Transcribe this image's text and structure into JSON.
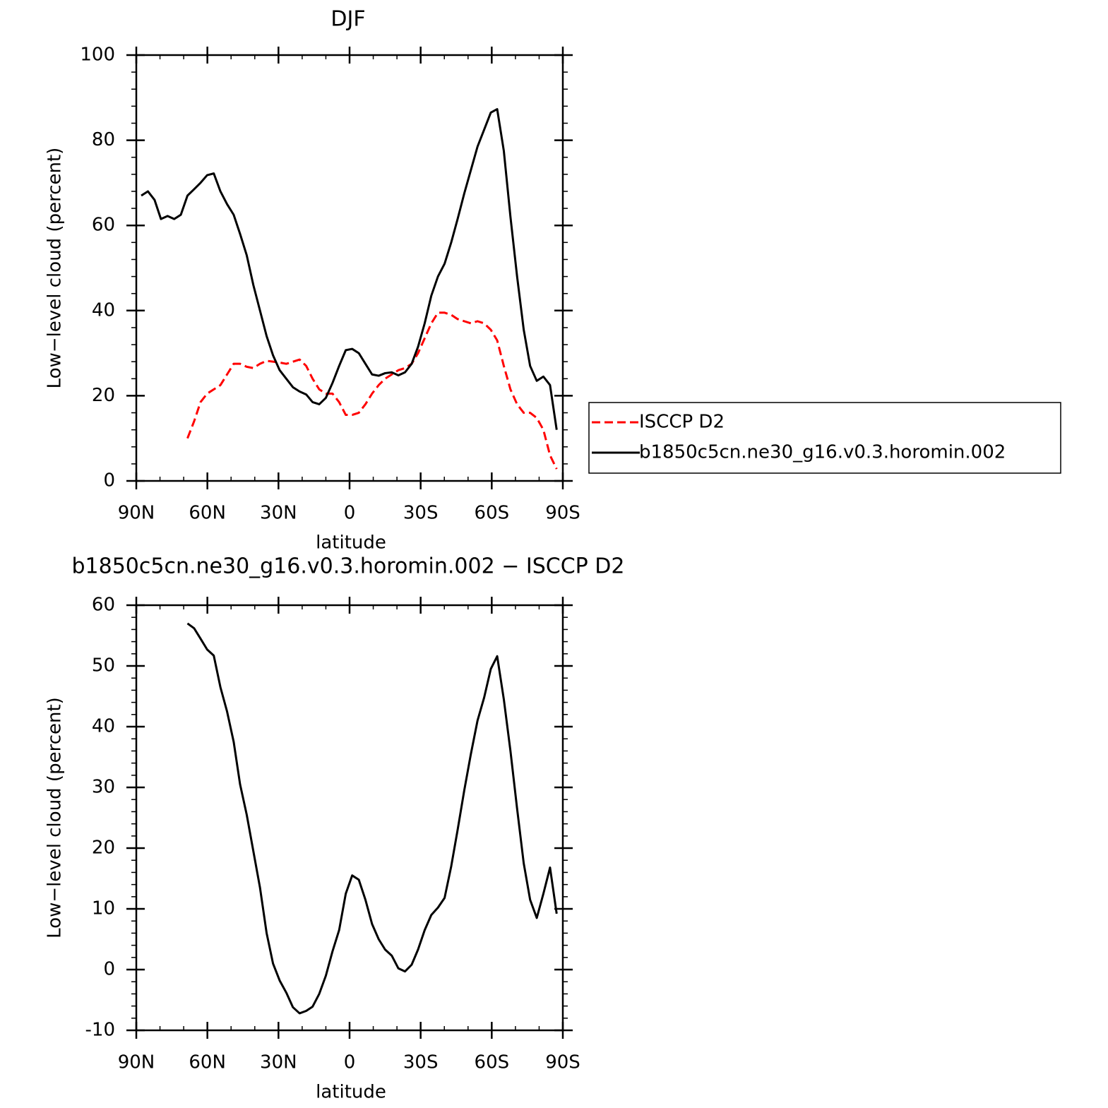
{
  "chart_data": [
    {
      "type": "line",
      "title": "DJF",
      "x_label": "latitude",
      "y_label": "Low−level cloud (percent)",
      "x": [
        87.9,
        85.1,
        82.3,
        79.6,
        76.8,
        74.0,
        71.2,
        68.4,
        65.6,
        62.9,
        60.1,
        57.3,
        54.5,
        51.7,
        48.9,
        46.2,
        43.4,
        40.6,
        37.8,
        35.0,
        32.3,
        29.5,
        26.7,
        23.9,
        21.1,
        18.3,
        15.6,
        12.8,
        10.0,
        7.2,
        4.4,
        1.6,
        -1.1,
        -3.9,
        -6.7,
        -9.5,
        -12.3,
        -15.0,
        -17.8,
        -20.6,
        -23.4,
        -26.2,
        -28.9,
        -31.7,
        -34.5,
        -37.3,
        -40.1,
        -42.9,
        -45.6,
        -48.4,
        -51.2,
        -54.0,
        -56.8,
        -59.6,
        -62.3,
        -65.1,
        -67.9,
        -70.7,
        -73.5,
        -76.2,
        -79.0,
        -81.8,
        -84.6,
        -87.4
      ],
      "series": [
        {
          "name": "ISCCP D2",
          "color": "#ff0000",
          "line_style": "dashed",
          "values": [
            null,
            null,
            null,
            null,
            null,
            null,
            null,
            10,
            14,
            18.5,
            20.5,
            21.5,
            22.5,
            25,
            27.5,
            27.5,
            26.8,
            26.5,
            27.5,
            28.2,
            28,
            27.8,
            27.5,
            28,
            28.5,
            27,
            24,
            21.5,
            20.5,
            20.5,
            18.5,
            15.5,
            15.5,
            16,
            18,
            20.5,
            22.5,
            24,
            25,
            26,
            26.5,
            27.5,
            30,
            33.5,
            37,
            39.5,
            39.5,
            39,
            38,
            37.5,
            37,
            37.5,
            37,
            35.5,
            33,
            27,
            21.5,
            18,
            16,
            16,
            14.8,
            12,
            6,
            2.8
          ]
        },
        {
          "name": "b1850c5cn.ne30_g16.v0.3.horomin.002",
          "color": "#000000",
          "line_style": "solid",
          "values": [
            67,
            68,
            66,
            61.5,
            62.2,
            61.5,
            62.5,
            67,
            68.5,
            70,
            71.8,
            72.2,
            68,
            65,
            62.5,
            58,
            53,
            46,
            40,
            34,
            29.5,
            26,
            24,
            22,
            21,
            20.3,
            18.5,
            18,
            19.5,
            23,
            27,
            30.7,
            31,
            30,
            27.5,
            25,
            24.7,
            25.3,
            25.5,
            24.8,
            25.5,
            27.5,
            31.5,
            37,
            43.5,
            48,
            51,
            56,
            61.5,
            67.5,
            73,
            78.5,
            82.5,
            86.5,
            87.3,
            77.5,
            62,
            48,
            35.5,
            27,
            23.5,
            24.5,
            22.5,
            12
          ]
        }
      ],
      "xlim": [
        90,
        -90
      ],
      "xticks": [
        {
          "value": 90,
          "label": "90N"
        },
        {
          "value": 60,
          "label": "60N"
        },
        {
          "value": 30,
          "label": "30N"
        },
        0,
        {
          "value": -30,
          "label": "30S"
        },
        {
          "value": -60,
          "label": "60S"
        },
        {
          "value": -90,
          "label": "90S"
        }
      ],
      "xminorticks": [
        80,
        70,
        50,
        40,
        20,
        10,
        -10,
        -20,
        -40,
        -50,
        -70,
        -80
      ],
      "ylim": [
        0,
        100
      ],
      "yticks": [
        0,
        20,
        40,
        60,
        80,
        100
      ],
      "yminorticks": [
        4,
        8,
        12,
        16,
        24,
        28,
        32,
        36,
        44,
        48,
        52,
        56,
        64,
        68,
        72,
        76,
        84,
        88,
        92,
        96
      ],
      "legend": "right"
    },
    {
      "type": "line",
      "title": "b1850c5cn.ne30_g16.v0.3.horomin.002 − ISCCP D2",
      "x_label": "latitude",
      "y_label": "Low−level cloud (percent)",
      "x": [
        87.9,
        85.1,
        82.3,
        79.6,
        76.8,
        74.0,
        71.2,
        68.4,
        65.6,
        62.9,
        60.1,
        57.3,
        54.5,
        51.7,
        48.9,
        46.2,
        43.4,
        40.6,
        37.8,
        35.0,
        32.3,
        29.5,
        26.7,
        23.9,
        21.1,
        18.3,
        15.6,
        12.8,
        10.0,
        7.2,
        4.4,
        1.6,
        -1.1,
        -3.9,
        -6.7,
        -9.5,
        -12.3,
        -15.0,
        -17.8,
        -20.6,
        -23.4,
        -26.2,
        -28.9,
        -31.7,
        -34.5,
        -37.3,
        -40.1,
        -42.9,
        -45.6,
        -48.4,
        -51.2,
        -54.0,
        -56.8,
        -59.6,
        -62.3,
        -65.1,
        -67.9,
        -70.7,
        -73.5,
        -76.2,
        -79.0,
        -81.8,
        -84.6,
        -87.4
      ],
      "color": "#000000",
      "values": [
        null,
        null,
        null,
        null,
        null,
        null,
        null,
        57,
        56.2,
        54.5,
        52.7,
        51.7,
        46.5,
        42.5,
        37.5,
        30.5,
        25.5,
        19.5,
        13.5,
        6,
        1,
        -1.8,
        -3.8,
        -6.2,
        -7.2,
        -6.8,
        -6.1,
        -4,
        -1,
        3,
        6.5,
        12.5,
        15.5,
        14.8,
        11.5,
        7.5,
        5,
        3.3,
        2.3,
        0.2,
        -0.3,
        0.8,
        3.3,
        6.5,
        9,
        10.2,
        11.8,
        17,
        23,
        29.5,
        35.5,
        41,
        44.8,
        49.5,
        51.6,
        44.5,
        36,
        26.5,
        17.5,
        11.5,
        8.5,
        12.5,
        16.8,
        9.2
      ],
      "xlim": [
        90,
        -90
      ],
      "xticks": [
        {
          "value": 90,
          "label": "90N"
        },
        {
          "value": 60,
          "label": "60N"
        },
        {
          "value": 30,
          "label": "30N"
        },
        0,
        {
          "value": -30,
          "label": "30S"
        },
        {
          "value": -60,
          "label": "60S"
        },
        {
          "value": -90,
          "label": "90S"
        }
      ],
      "xminorticks": [
        80,
        70,
        50,
        40,
        20,
        10,
        -10,
        -20,
        -40,
        -50,
        -70,
        -80
      ],
      "ylim": [
        -10,
        60
      ],
      "yticks": [
        -10,
        0,
        10,
        20,
        30,
        40,
        50,
        60
      ],
      "yminorticks": [
        -8,
        -6,
        -4,
        -2,
        2,
        4,
        6,
        8,
        12,
        14,
        16,
        18,
        22,
        24,
        26,
        28,
        32,
        34,
        36,
        38,
        42,
        44,
        46,
        48,
        52,
        54,
        56,
        58
      ]
    }
  ]
}
